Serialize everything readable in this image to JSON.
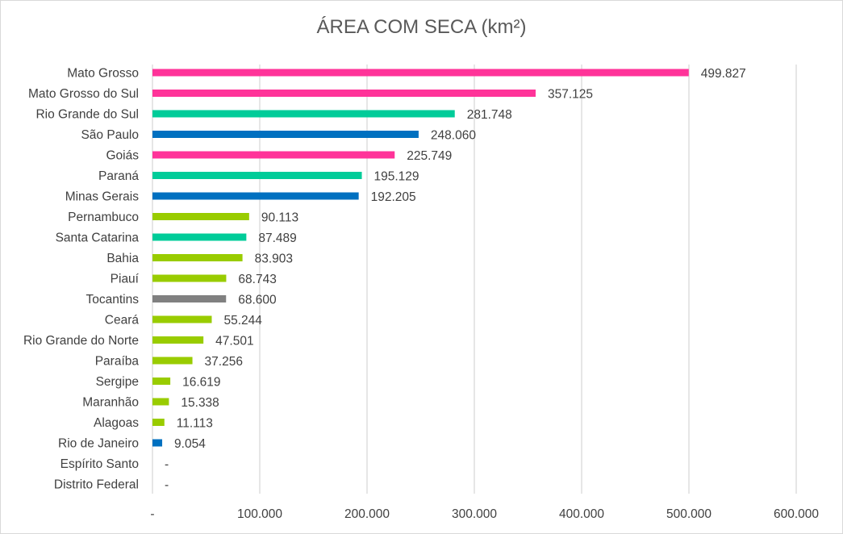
{
  "chart_data": {
    "type": "bar",
    "orientation": "horizontal",
    "title": "ÁREA COM SECA (km²)",
    "categories": [
      "Mato Grosso",
      "Mato Grosso do Sul",
      "Rio Grande do Sul",
      "São Paulo",
      "Goiás",
      "Paraná",
      "Minas Gerais",
      "Pernambuco",
      "Santa Catarina",
      "Bahia",
      "Piauí",
      "Tocantins",
      "Ceará",
      "Rio Grande do Norte",
      "Paraíba",
      "Sergipe",
      "Maranhão",
      "Alagoas",
      "Rio de Janeiro",
      "Espírito Santo",
      "Distrito Federal"
    ],
    "values": [
      499827,
      357125,
      281748,
      248060,
      225749,
      195129,
      192205,
      90113,
      87489,
      83903,
      68743,
      68600,
      55244,
      47501,
      37256,
      16619,
      15338,
      11113,
      9054,
      0,
      0
    ],
    "data_labels": [
      "499.827",
      "357.125",
      "281.748",
      "248.060",
      "225.749",
      "195.129",
      "192.205",
      "90.113",
      "87.489",
      "83.903",
      "68.743",
      "68.600",
      "55.244",
      "47.501",
      "37.256",
      "16.619",
      "15.338",
      "11.113",
      "9.054",
      "-",
      "-"
    ],
    "bar_colors": [
      "#FF3399",
      "#FF3399",
      "#00CC99",
      "#0070C0",
      "#FF3399",
      "#00CC99",
      "#0070C0",
      "#99CC00",
      "#00CC99",
      "#99CC00",
      "#99CC00",
      "#808080",
      "#99CC00",
      "#99CC00",
      "#99CC00",
      "#99CC00",
      "#99CC00",
      "#99CC00",
      "#0070C0",
      "#0070C0",
      "#0070C0"
    ],
    "xlim": [
      0,
      600000
    ],
    "x_ticks": [
      0,
      100000,
      200000,
      300000,
      400000,
      500000,
      600000
    ],
    "x_tick_labels": [
      "-",
      "100.000",
      "200.000",
      "300.000",
      "400.000",
      "500.000",
      "600.000"
    ],
    "grid": "vertical",
    "legend": "none",
    "xlabel": "",
    "ylabel": ""
  }
}
